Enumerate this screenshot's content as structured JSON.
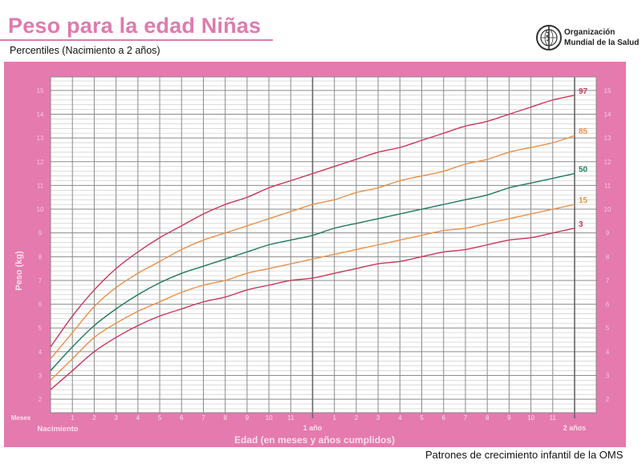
{
  "header": {
    "title": "Peso para la edad Niñas",
    "subtitle": "Percentiles (Nacimiento a 2 años)",
    "logo_line1": "Organización",
    "logo_line2": "Mundial de la Salud",
    "logo_icon": "who-emblem-icon"
  },
  "footer": {
    "text": "Patrones de crecimiento infantil de la OMS"
  },
  "colors": {
    "panel": "#e57aae",
    "title": "#e07aae",
    "grid_major": "#8a8a8a",
    "grid_minor": "#d2d2d2",
    "p97": "#c8385a",
    "p85": "#e8904a",
    "p50": "#1f7a5a",
    "p15": "#e8904a",
    "p3": "#c8385a"
  },
  "chart_data": {
    "type": "line",
    "title": "Peso para la edad Niñas",
    "subtitle": "Percentiles (Nacimiento a 2 años)",
    "xlabel": "Edad (en meses y años cumplidos)",
    "ylabel": "Peso (kg)",
    "x_unit_label": "Meses",
    "x_tick_labels": [
      "Nacimiento",
      "1",
      "2",
      "3",
      "4",
      "5",
      "6",
      "7",
      "8",
      "9",
      "10",
      "11",
      "1 año",
      "1",
      "2",
      "3",
      "4",
      "5",
      "6",
      "7",
      "8",
      "9",
      "10",
      "11",
      "2 años"
    ],
    "x": [
      0,
      1,
      2,
      3,
      4,
      5,
      6,
      7,
      8,
      9,
      10,
      11,
      12,
      13,
      14,
      15,
      16,
      17,
      18,
      19,
      20,
      21,
      22,
      23,
      24
    ],
    "xlim": [
      0,
      25
    ],
    "ylim": [
      1.43,
      15.57
    ],
    "y_ticks": [
      2,
      3,
      4,
      5,
      6,
      7,
      8,
      9,
      10,
      11,
      12,
      13,
      14,
      15
    ],
    "grid": true,
    "grid_minor_y_step": 0.2,
    "legend_position": "right-end labels",
    "series": [
      {
        "name": "97",
        "values": [
          4.2,
          5.5,
          6.6,
          7.5,
          8.2,
          8.8,
          9.3,
          9.8,
          10.2,
          10.5,
          10.9,
          11.2,
          11.5,
          11.8,
          12.1,
          12.4,
          12.6,
          12.9,
          13.2,
          13.5,
          13.7,
          14.0,
          14.3,
          14.6,
          14.8
        ]
      },
      {
        "name": "85",
        "values": [
          3.7,
          4.8,
          5.9,
          6.7,
          7.3,
          7.8,
          8.3,
          8.7,
          9.0,
          9.3,
          9.6,
          9.9,
          10.2,
          10.4,
          10.7,
          10.9,
          11.2,
          11.4,
          11.6,
          11.9,
          12.1,
          12.4,
          12.6,
          12.8,
          13.1
        ]
      },
      {
        "name": "50",
        "values": [
          3.2,
          4.2,
          5.1,
          5.8,
          6.4,
          6.9,
          7.3,
          7.6,
          7.9,
          8.2,
          8.5,
          8.7,
          8.9,
          9.2,
          9.4,
          9.6,
          9.8,
          10.0,
          10.2,
          10.4,
          10.6,
          10.9,
          11.1,
          11.3,
          11.5
        ]
      },
      {
        "name": "15",
        "values": [
          2.8,
          3.7,
          4.6,
          5.2,
          5.7,
          6.1,
          6.5,
          6.8,
          7.0,
          7.3,
          7.5,
          7.7,
          7.9,
          8.1,
          8.3,
          8.5,
          8.7,
          8.9,
          9.1,
          9.2,
          9.4,
          9.6,
          9.8,
          10.0,
          10.2
        ]
      },
      {
        "name": "3",
        "values": [
          2.4,
          3.2,
          4.0,
          4.6,
          5.1,
          5.5,
          5.8,
          6.1,
          6.3,
          6.6,
          6.8,
          7.0,
          7.1,
          7.3,
          7.5,
          7.7,
          7.8,
          8.0,
          8.2,
          8.3,
          8.5,
          8.7,
          8.8,
          9.0,
          9.2
        ]
      }
    ]
  }
}
